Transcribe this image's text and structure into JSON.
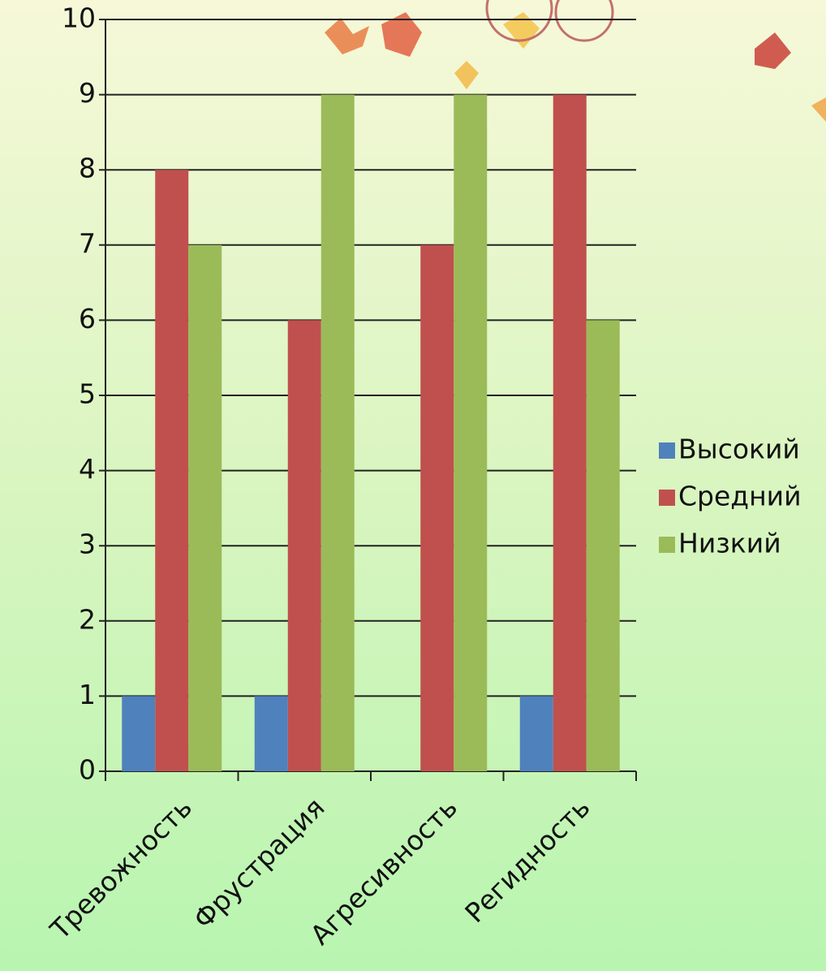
{
  "chart_data": {
    "type": "bar",
    "categories": [
      "Тревожность",
      "Фрустрация",
      "Агресивность",
      "Регидность"
    ],
    "series": [
      {
        "name": "Высокий",
        "color": "#4f81bd",
        "values": [
          1,
          1,
          0,
          1
        ]
      },
      {
        "name": "Средний",
        "color": "#c0504d",
        "values": [
          8,
          6,
          7,
          9
        ]
      },
      {
        "name": "Низкий",
        "color": "#9bbb59",
        "values": [
          7,
          9,
          9,
          6
        ]
      }
    ],
    "ylim": [
      0,
      10
    ],
    "yticks": [
      0,
      1,
      2,
      3,
      4,
      5,
      6,
      7,
      8,
      9,
      10
    ],
    "grid": true,
    "legend": "right"
  }
}
